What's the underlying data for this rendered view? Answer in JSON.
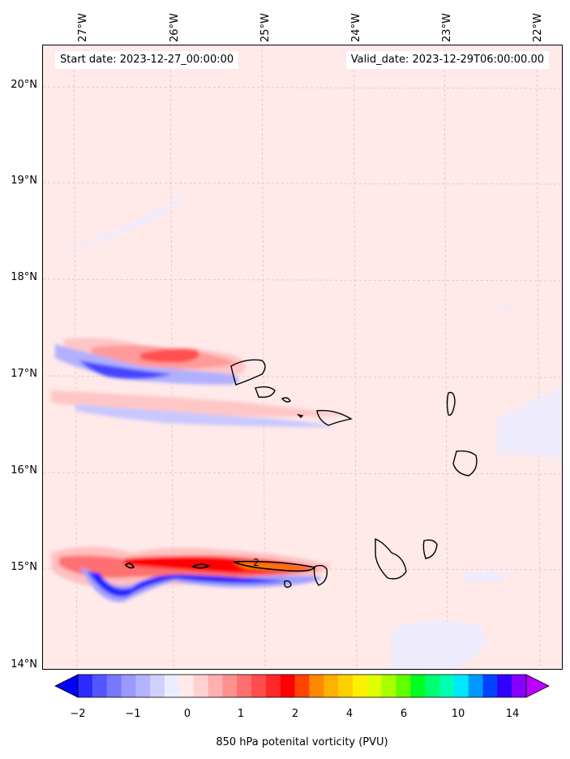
{
  "header": {
    "start_date": "Start date: 2023-12-27_00:00:00",
    "valid_date": "Valid_date: 2023-12-29T06:00:00.00"
  },
  "map": {
    "lat_labels": [
      "20°N",
      "19°N",
      "18°N",
      "17°N",
      "16°N",
      "15°N",
      "14°N"
    ],
    "lon_labels": [
      "27°W",
      "26°W",
      "25°W",
      "24°W",
      "23°W",
      "22°W"
    ],
    "contour_label": "2",
    "background_color": "#ffe9e9"
  },
  "colorbar": {
    "label": "850 hPa potenital vorticity (PVU)",
    "tick_labels": [
      "−2",
      "−1",
      "0",
      "1",
      "2",
      "4",
      "6",
      "10",
      "14"
    ],
    "colors": [
      "#0000ff",
      "#2b2bff",
      "#5555ff",
      "#7777ff",
      "#9999ff",
      "#b3b3ff",
      "#d0d0ff",
      "#ececff",
      "#ffe9e9",
      "#ffd0d0",
      "#ffb0b0",
      "#ff9090",
      "#ff6f6f",
      "#ff4c4c",
      "#ff2828",
      "#ff0000",
      "#ff4400",
      "#ff8800",
      "#ffb000",
      "#ffd000",
      "#fff000",
      "#e0ff00",
      "#a8ff00",
      "#60ff00",
      "#00ff20",
      "#00ff70",
      "#00ffb0",
      "#00e8ff",
      "#0099ff",
      "#0044ff",
      "#3300ff",
      "#8800ff",
      "#bb00ff"
    ]
  }
}
